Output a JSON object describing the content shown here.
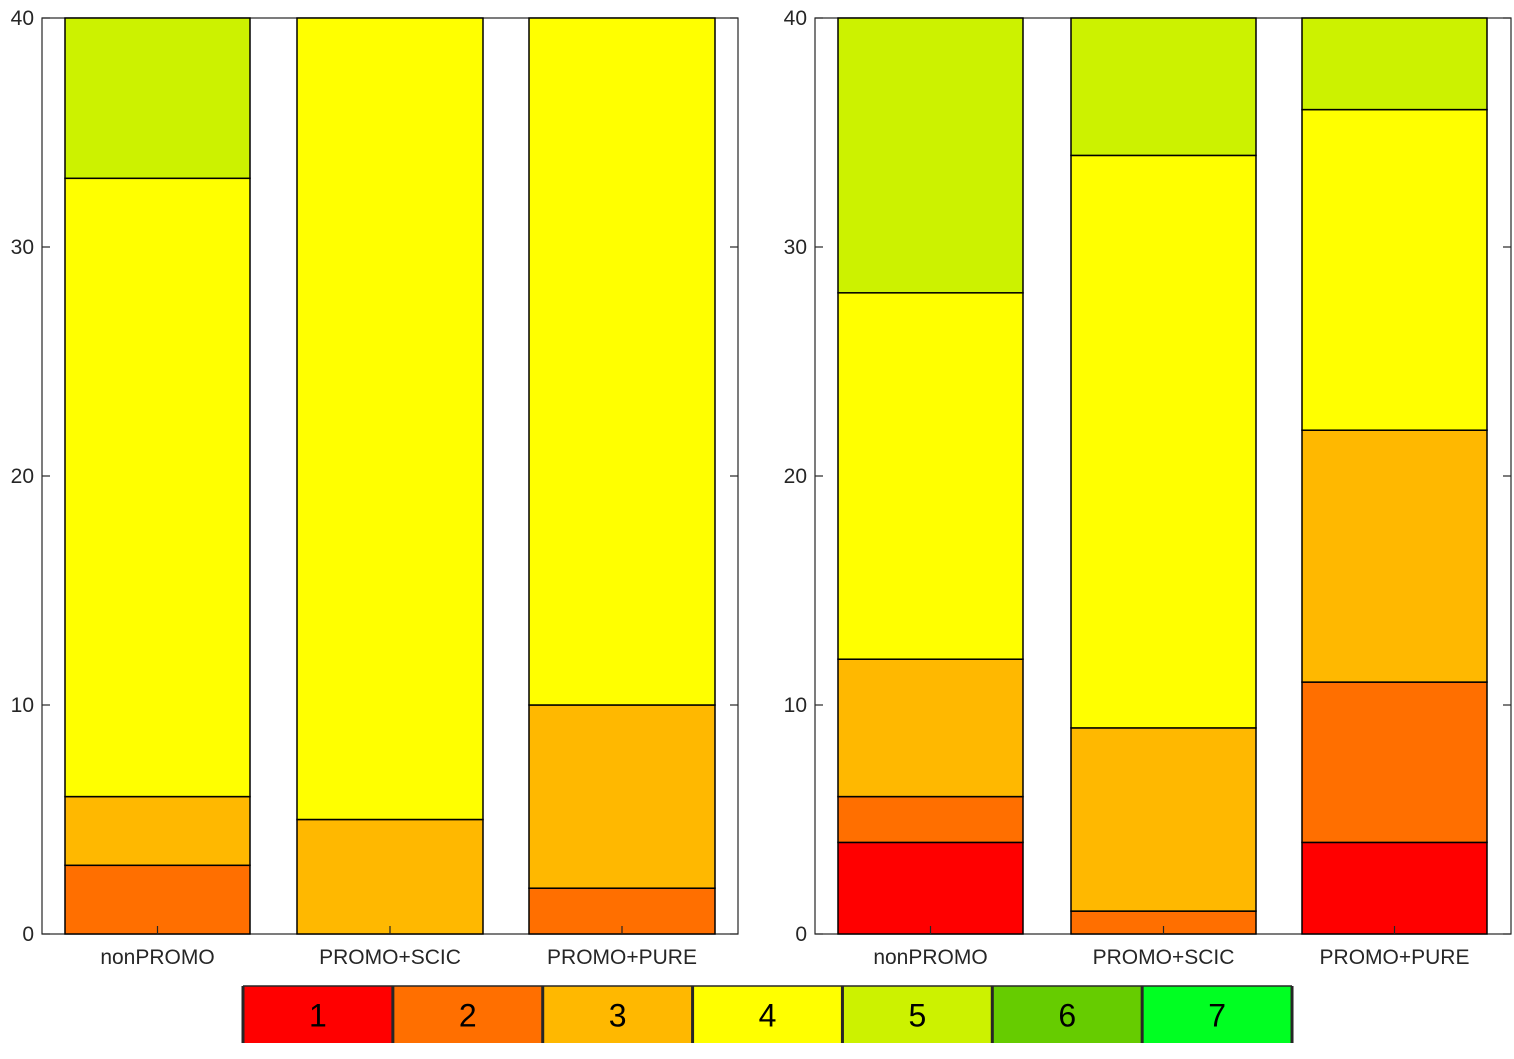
{
  "colors": {
    "1": "#ff0000",
    "2": "#ff6f00",
    "3": "#ffb800",
    "4": "#ffff00",
    "5": "#ccf200",
    "6": "#66cc00",
    "7": "#00ff22"
  },
  "legend": {
    "levels": [
      "1",
      "2",
      "3",
      "4",
      "5",
      "6",
      "7"
    ]
  },
  "chart_data": [
    {
      "type": "bar",
      "stacked": true,
      "categories": [
        "nonPROMO",
        "PROMO+SCIC",
        "PROMO+PURE"
      ],
      "ylim": [
        0,
        40
      ],
      "yticks": [
        "0",
        "10",
        "20",
        "30",
        "40"
      ],
      "grid": false,
      "series": [
        {
          "name": "1",
          "values": [
            0,
            0,
            0
          ]
        },
        {
          "name": "2",
          "values": [
            3,
            0,
            2
          ]
        },
        {
          "name": "3",
          "values": [
            3,
            5,
            8
          ]
        },
        {
          "name": "4",
          "values": [
            27,
            35,
            30
          ]
        },
        {
          "name": "5",
          "values": [
            7,
            0,
            0
          ]
        },
        {
          "name": "6",
          "values": [
            0,
            0,
            0
          ]
        },
        {
          "name": "7",
          "values": [
            0,
            0,
            0
          ]
        }
      ]
    },
    {
      "type": "bar",
      "stacked": true,
      "categories": [
        "nonPROMO",
        "PROMO+SCIC",
        "PROMO+PURE"
      ],
      "ylim": [
        0,
        40
      ],
      "yticks": [
        "0",
        "10",
        "20",
        "30",
        "40"
      ],
      "grid": false,
      "series": [
        {
          "name": "1",
          "values": [
            4,
            0,
            4
          ]
        },
        {
          "name": "2",
          "values": [
            2,
            1,
            7
          ]
        },
        {
          "name": "3",
          "values": [
            6,
            8,
            11
          ]
        },
        {
          "name": "4",
          "values": [
            16,
            25,
            14
          ]
        },
        {
          "name": "5",
          "values": [
            12,
            6,
            4
          ]
        },
        {
          "name": "6",
          "values": [
            0,
            0,
            0
          ]
        },
        {
          "name": "7",
          "values": [
            0,
            0,
            0
          ]
        }
      ]
    }
  ]
}
